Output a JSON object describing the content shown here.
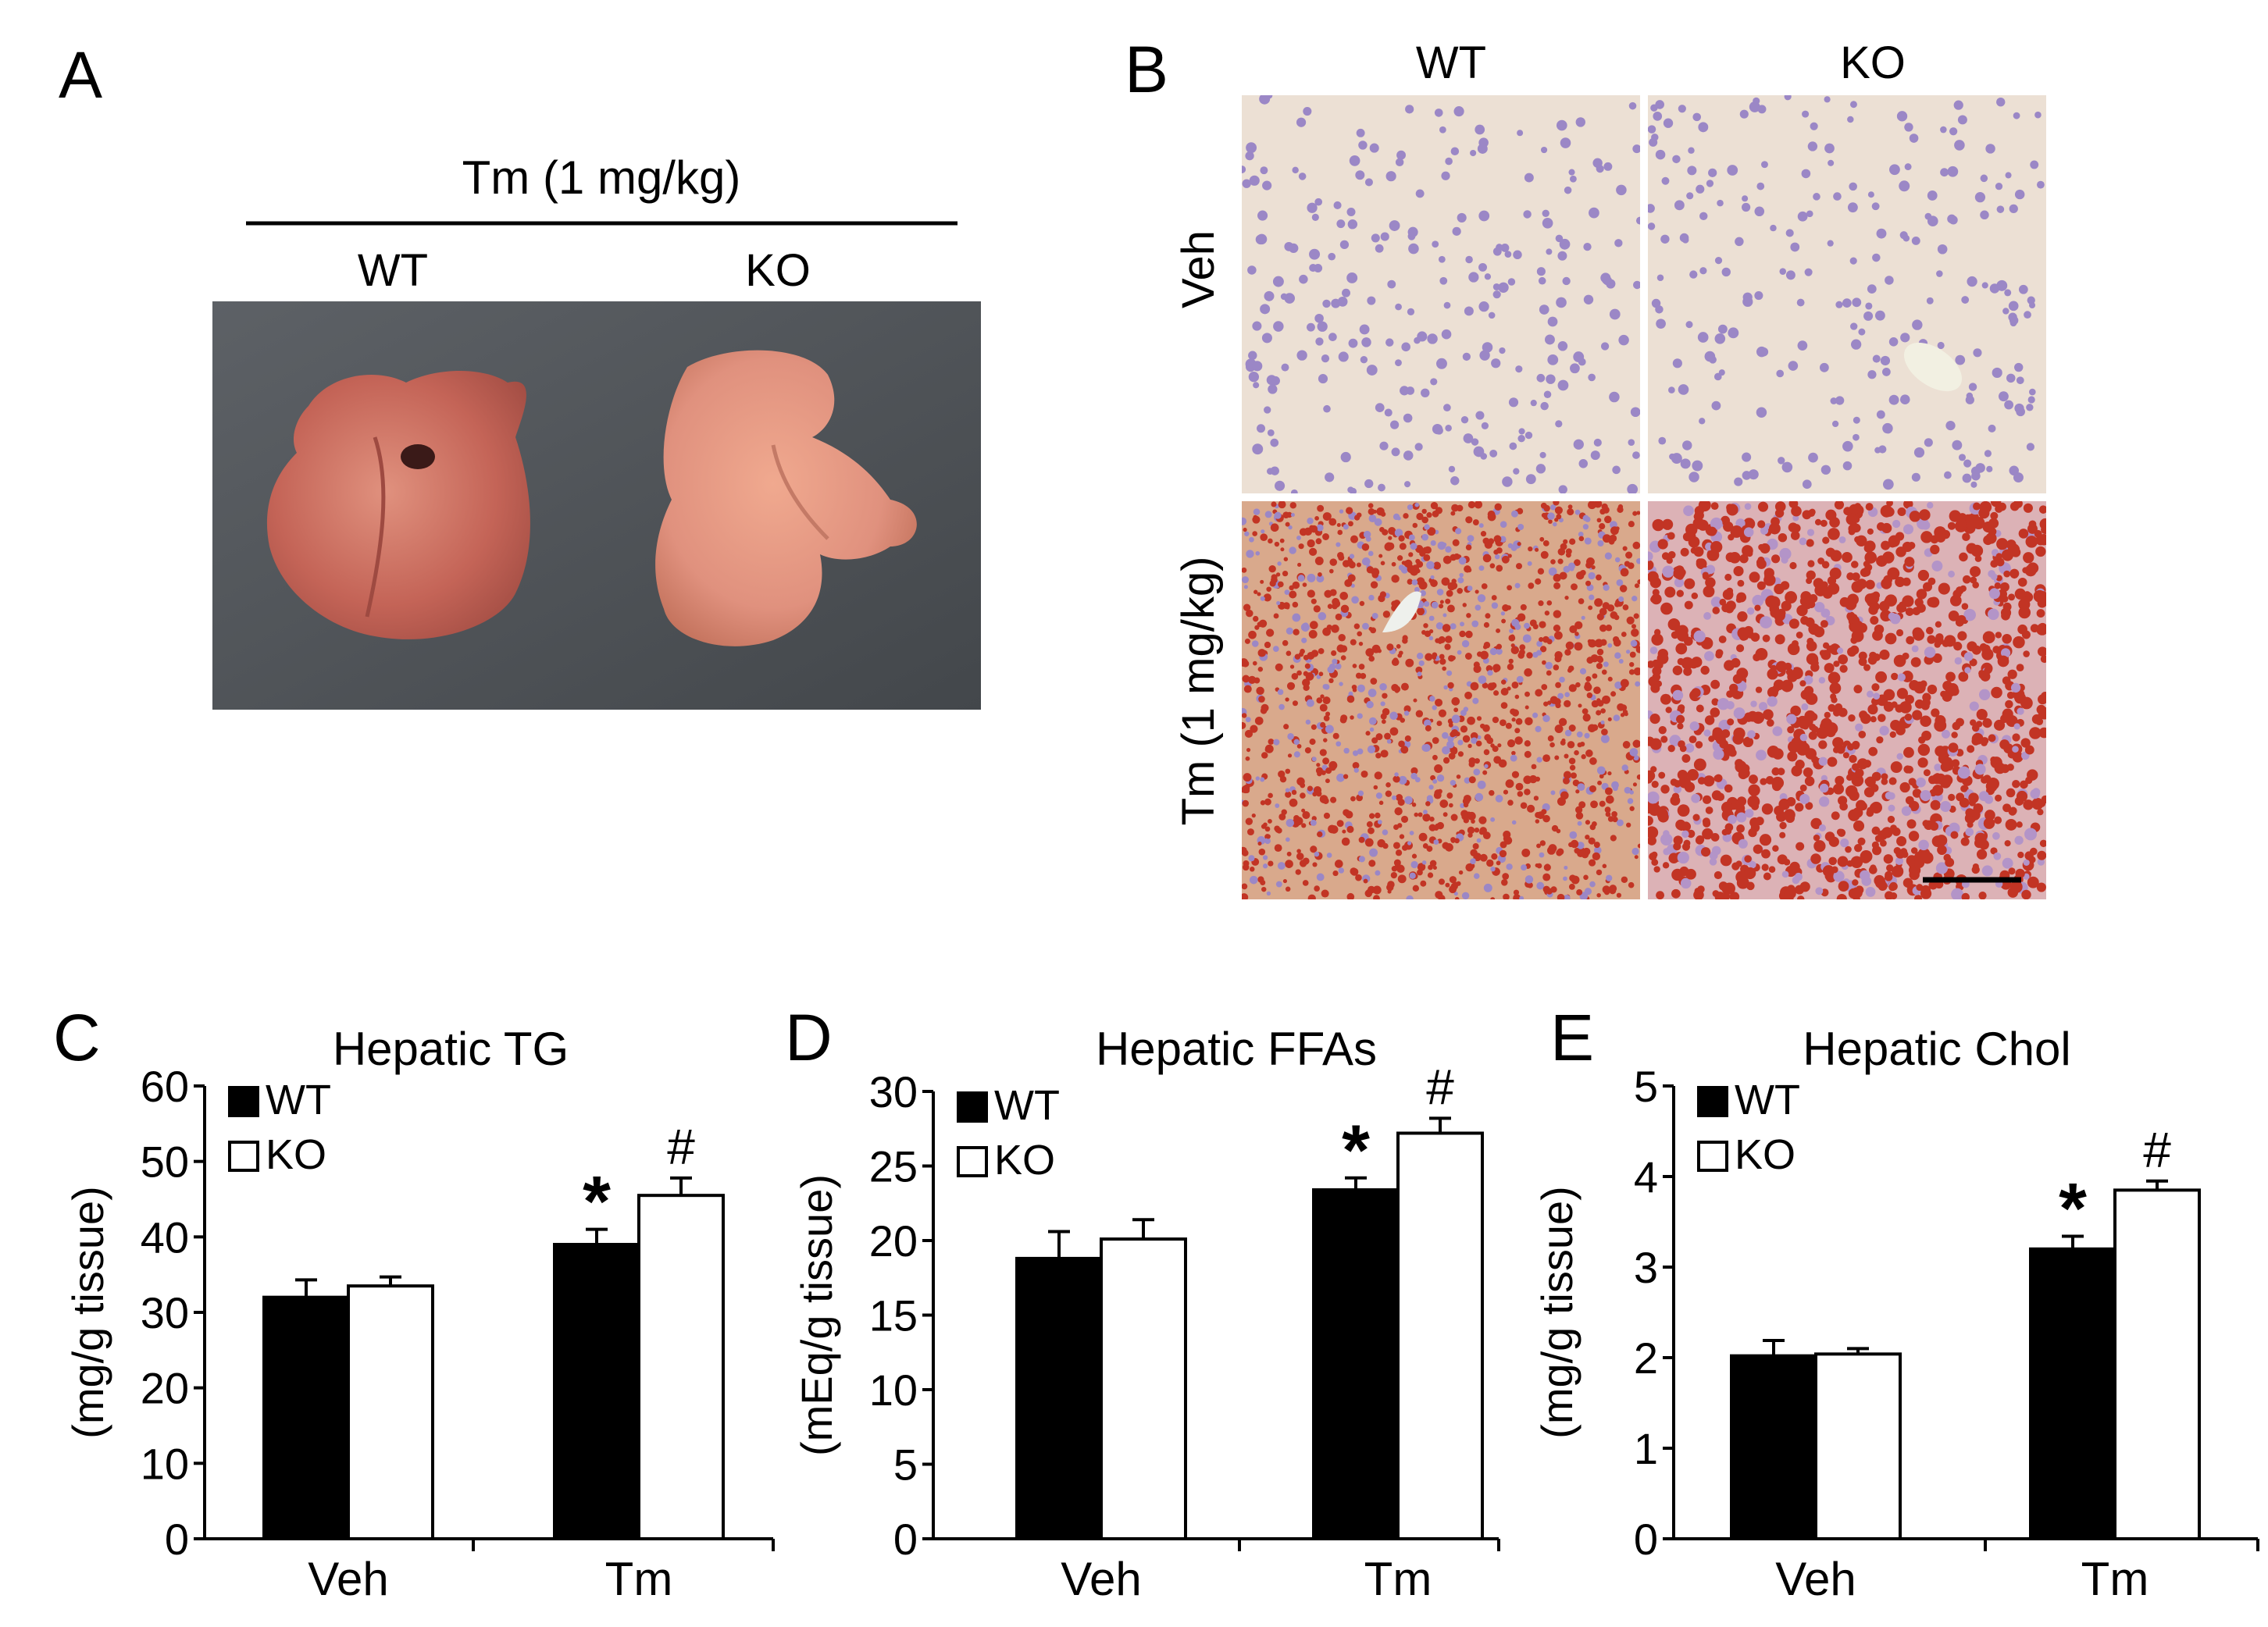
{
  "panel_a": {
    "letter": "A",
    "treatment": "Tm (1 mg/kg)",
    "groups": [
      "WT",
      "KO"
    ]
  },
  "panel_b": {
    "letter": "B",
    "columns": [
      "WT",
      "KO"
    ],
    "rows": [
      "Veh",
      "Tm (1 mg/kg)"
    ]
  },
  "colors": {
    "wt_bar": "#000000",
    "ko_bar": "#ffffff",
    "liver_dark": "#c46457",
    "liver_light": "#e0917e",
    "tray": "#505458",
    "he_bg": "#ece0d4",
    "he_nuclei": "#9b87c6",
    "oro_bg": "#d9a98c",
    "oro_droplet": "#c23424"
  },
  "chart_data": [
    {
      "letter": "C",
      "type": "bar",
      "title": "Hepatic TG",
      "ylabel": "(mg/g tissue)",
      "xlabel": "",
      "categories": [
        "Veh",
        "Tm"
      ],
      "ylim": [
        0,
        60
      ],
      "yticks": [
        0,
        10,
        20,
        30,
        40,
        50,
        60
      ],
      "legend": [
        "WT",
        "KO"
      ],
      "legend_position": "top-left",
      "series": [
        {
          "name": "WT",
          "values": [
            32,
            39
          ],
          "errors": [
            2.3,
            2
          ]
        },
        {
          "name": "KO",
          "values": [
            33.5,
            45.5
          ],
          "errors": [
            1.2,
            2.3
          ]
        }
      ],
      "annotations": [
        {
          "category": "Tm",
          "series": "WT",
          "text": "*"
        },
        {
          "category": "Tm",
          "series": "KO",
          "text": "#"
        }
      ]
    },
    {
      "letter": "D",
      "type": "bar",
      "title": "Hepatic FFAs",
      "ylabel": "(mEq/g tissue)",
      "xlabel": "",
      "categories": [
        "Veh",
        "Tm"
      ],
      "ylim": [
        0,
        30
      ],
      "yticks": [
        0,
        5,
        10,
        15,
        20,
        25,
        30
      ],
      "legend": [
        "WT",
        "KO"
      ],
      "legend_position": "top-left",
      "series": [
        {
          "name": "WT",
          "values": [
            18.8,
            23.4
          ],
          "errors": [
            1.8,
            0.8
          ]
        },
        {
          "name": "KO",
          "values": [
            20.1,
            27.2
          ],
          "errors": [
            1.3,
            1
          ]
        }
      ],
      "annotations": [
        {
          "category": "Tm",
          "series": "WT",
          "text": "*"
        },
        {
          "category": "Tm",
          "series": "KO",
          "text": "#"
        }
      ]
    },
    {
      "letter": "E",
      "type": "bar",
      "title": "Hepatic Chol",
      "ylabel": "(mg/g tissue)",
      "xlabel": "",
      "categories": [
        "Veh",
        "Tm"
      ],
      "ylim": [
        0,
        5
      ],
      "yticks": [
        0,
        1,
        2,
        3,
        4,
        5
      ],
      "legend": [
        "WT",
        "KO"
      ],
      "legend_position": "top-left",
      "series": [
        {
          "name": "WT",
          "values": [
            2.02,
            3.2
          ],
          "errors": [
            0.17,
            0.14
          ]
        },
        {
          "name": "KO",
          "values": [
            2.04,
            3.85
          ],
          "errors": [
            0.06,
            0.1
          ]
        }
      ],
      "annotations": [
        {
          "category": "Tm",
          "series": "WT",
          "text": "*"
        },
        {
          "category": "Tm",
          "series": "KO",
          "text": "#"
        }
      ]
    }
  ]
}
